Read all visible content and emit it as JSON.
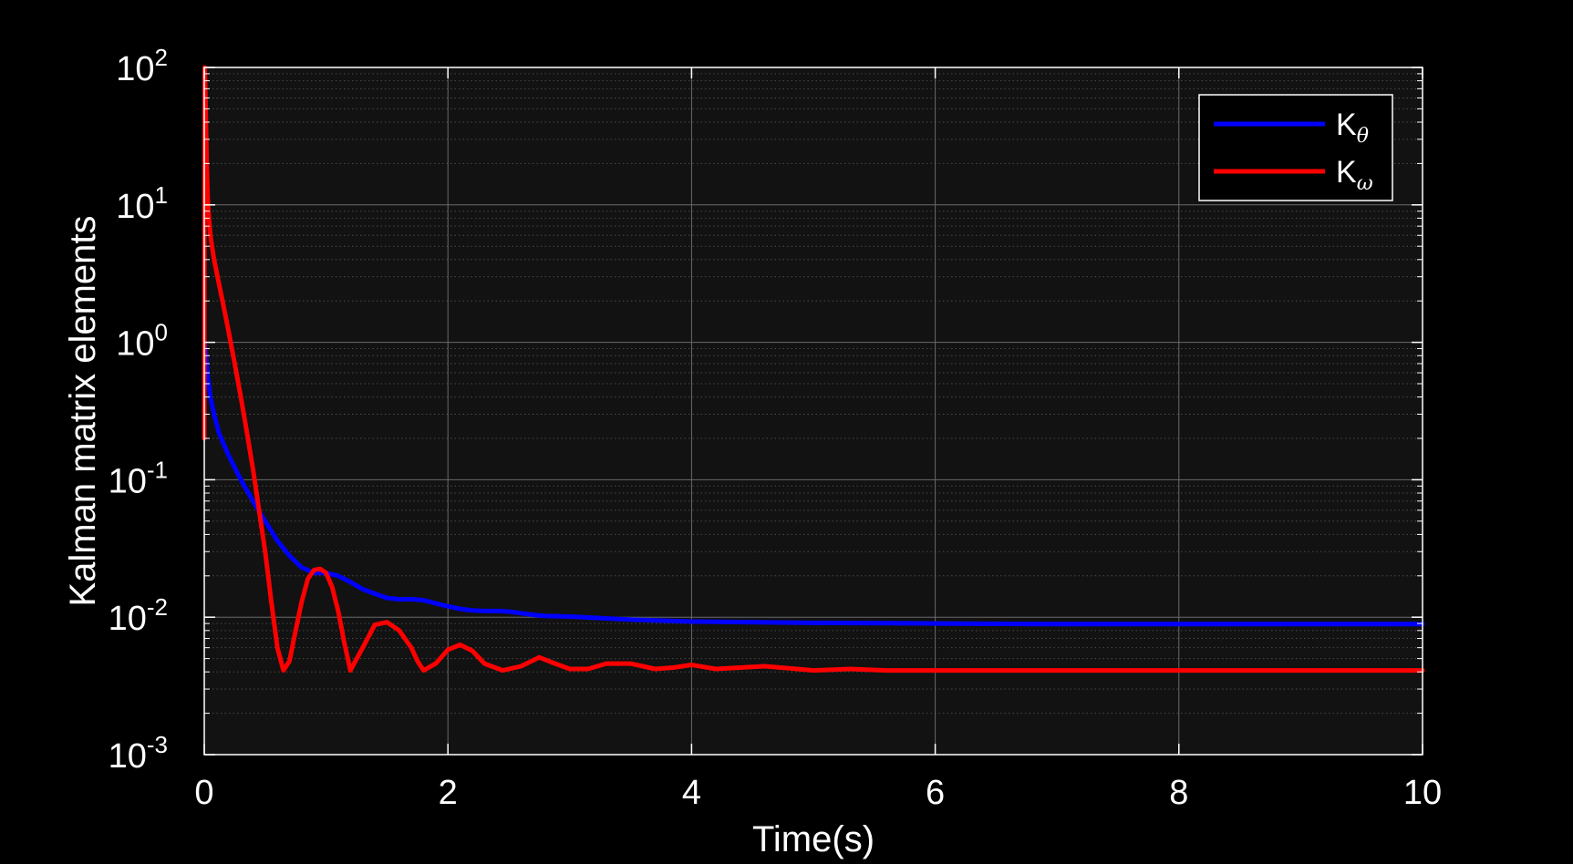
{
  "chart_data": {
    "type": "line",
    "title": "",
    "xlabel": "Time(s)",
    "ylabel": "Kalman matrix elements",
    "xlim": [
      0,
      10
    ],
    "ylim": [
      0.001,
      100
    ],
    "yscale": "log",
    "grid": true,
    "minor_grid": true,
    "legend_position": "top-right",
    "x_ticks": [
      0,
      2,
      4,
      6,
      8,
      10
    ],
    "x_tick_labels": [
      "0",
      "2",
      "4",
      "6",
      "8",
      "10"
    ],
    "y_ticks": [
      0.001,
      0.01,
      0.1,
      1,
      10,
      100
    ],
    "y_tick_labels": [
      {
        "base": "10",
        "exp": "-3"
      },
      {
        "base": "10",
        "exp": "-2"
      },
      {
        "base": "10",
        "exp": "-1"
      },
      {
        "base": "10",
        "exp": "0"
      },
      {
        "base": "10",
        "exp": "1"
      },
      {
        "base": "10",
        "exp": "2"
      }
    ],
    "colors": {
      "background": "#000000",
      "plot_background": "#121212",
      "axis": "#ffffff",
      "grid": "#6a6a6a"
    },
    "series": [
      {
        "name": "K",
        "name_subscript": "θ",
        "color": "#0000ff",
        "x": [
          0,
          0.01,
          0.03,
          0.05,
          0.08,
          0.12,
          0.2,
          0.3,
          0.4,
          0.5,
          0.6,
          0.7,
          0.8,
          0.9,
          1.0,
          1.1,
          1.2,
          1.3,
          1.4,
          1.5,
          1.6,
          1.7,
          1.8,
          1.9,
          2.0,
          2.1,
          2.2,
          2.3,
          2.4,
          2.5,
          2.6,
          2.7,
          2.8,
          3.0,
          3.2,
          3.5,
          4.0,
          5.0,
          6.0,
          7.0,
          8.0,
          9.0,
          10.0
        ],
        "y": [
          1.0,
          0.9,
          0.55,
          0.4,
          0.3,
          0.22,
          0.15,
          0.1,
          0.07,
          0.05,
          0.036,
          0.028,
          0.023,
          0.021,
          0.021,
          0.02,
          0.018,
          0.016,
          0.0148,
          0.0138,
          0.0135,
          0.0135,
          0.0133,
          0.0126,
          0.012,
          0.0115,
          0.0112,
          0.0111,
          0.0111,
          0.011,
          0.0107,
          0.0104,
          0.0102,
          0.0101,
          0.0099,
          0.0096,
          0.0093,
          0.0091,
          0.009,
          0.0089,
          0.0089,
          0.0089,
          0.0089
        ]
      },
      {
        "name": "K",
        "name_subscript": "ω",
        "color": "#ff0000",
        "x": [
          0,
          0.003,
          0.01,
          0.02,
          0.03,
          0.05,
          0.08,
          0.12,
          0.16,
          0.2,
          0.25,
          0.3,
          0.35,
          0.4,
          0.45,
          0.5,
          0.55,
          0.6,
          0.65,
          0.7,
          0.75,
          0.8,
          0.85,
          0.9,
          0.95,
          1.0,
          1.05,
          1.1,
          1.15,
          1.2,
          1.3,
          1.4,
          1.5,
          1.6,
          1.7,
          1.75,
          1.8,
          1.9,
          2.0,
          2.1,
          2.2,
          2.3,
          2.45,
          2.6,
          2.75,
          2.85,
          3.0,
          3.15,
          3.3,
          3.5,
          3.7,
          3.85,
          4.0,
          4.2,
          4.6,
          5.0,
          5.3,
          5.6,
          6.0,
          7.0,
          8.0,
          9.0,
          10.0
        ],
        "y": [
          0.2,
          100,
          60,
          20,
          10,
          6,
          4,
          2.7,
          1.8,
          1.2,
          0.7,
          0.4,
          0.22,
          0.12,
          0.06,
          0.03,
          0.013,
          0.006,
          0.0041,
          0.0048,
          0.008,
          0.013,
          0.019,
          0.022,
          0.0225,
          0.021,
          0.0165,
          0.011,
          0.0065,
          0.0041,
          0.006,
          0.0088,
          0.0092,
          0.008,
          0.006,
          0.0048,
          0.0041,
          0.0046,
          0.0058,
          0.0063,
          0.0057,
          0.0046,
          0.0041,
          0.0044,
          0.0051,
          0.0047,
          0.0042,
          0.0042,
          0.0046,
          0.0046,
          0.0042,
          0.0043,
          0.0045,
          0.0042,
          0.0044,
          0.0041,
          0.0042,
          0.0041,
          0.0041,
          0.0041,
          0.0041,
          0.0041,
          0.0041
        ]
      }
    ]
  }
}
